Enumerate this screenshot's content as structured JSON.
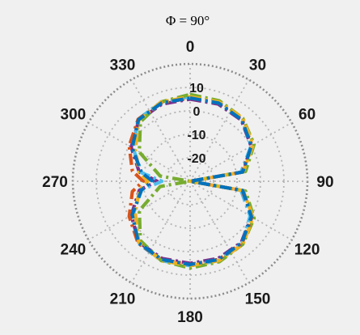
{
  "chart_data": {
    "type": "polar-line",
    "title": "Φ = 90°",
    "angle_zero": "top",
    "angle_direction": "clockwise",
    "angle_ticks": [
      0,
      30,
      60,
      90,
      120,
      150,
      180,
      210,
      240,
      270,
      300,
      330
    ],
    "angle_tick_labels": [
      "0",
      "30",
      "60",
      "90",
      "120",
      "150",
      "180",
      "210",
      "240",
      "270",
      "300",
      "330"
    ],
    "radial_range": [
      -30,
      20
    ],
    "radial_ticks": [
      10,
      0,
      -10,
      -20
    ],
    "radial_tick_labels": [
      "10",
      "0",
      "-10",
      "-20"
    ],
    "grid": true,
    "legend": "none",
    "series": [
      {
        "color": "#7e2f8e",
        "theta": [
          0,
          20,
          40,
          60,
          80,
          90,
          100,
          120,
          140,
          160,
          180,
          200,
          220,
          240,
          260,
          270,
          280,
          300,
          320,
          340,
          360
        ],
        "r": [
          5,
          5,
          4,
          0,
          -7,
          -30,
          -7,
          0,
          4,
          5,
          5,
          5,
          4,
          -1,
          -8,
          -16,
          -8,
          -1,
          4,
          5,
          5
        ]
      },
      {
        "color": "#4dbeee",
        "theta": [
          0,
          20,
          40,
          60,
          80,
          90,
          100,
          120,
          140,
          160,
          180,
          200,
          220,
          240,
          260,
          270,
          280,
          300,
          320,
          340,
          360
        ],
        "r": [
          6,
          6,
          4.5,
          0,
          -8,
          -30,
          -8,
          -0.5,
          4.5,
          6,
          6,
          6,
          4.5,
          -2,
          -9,
          -18,
          -9,
          -2,
          4.5,
          6,
          6
        ]
      },
      {
        "color": "#77ac30",
        "theta": [
          0,
          20,
          40,
          60,
          80,
          90,
          100,
          120,
          140,
          160,
          180,
          200,
          220,
          240,
          260,
          270,
          280,
          300,
          320,
          340,
          360
        ],
        "r": [
          7,
          6.5,
          5,
          1.5,
          -6,
          -30,
          -6,
          1.5,
          5,
          6.5,
          7,
          6,
          3,
          -5,
          -17,
          -30,
          -17,
          -5,
          3,
          6,
          7
        ]
      },
      {
        "color": "#d95319",
        "theta": [
          0,
          20,
          40,
          60,
          80,
          90,
          100,
          120,
          140,
          160,
          180,
          200,
          220,
          240,
          260,
          270,
          280,
          300,
          320,
          340,
          360
        ],
        "r": [
          5.5,
          5.5,
          4.5,
          0.5,
          -7.5,
          -30,
          -7.5,
          0.5,
          4.5,
          5.5,
          5.5,
          5.5,
          4.5,
          0,
          -5,
          -10,
          -5,
          0,
          4.5,
          5.5,
          5.5
        ]
      },
      {
        "color": "#edb120",
        "theta": [
          0,
          20,
          40,
          60,
          80,
          90,
          100,
          120,
          140,
          160,
          180,
          200,
          220,
          240,
          260,
          270,
          280,
          300,
          320,
          340,
          360
        ],
        "r": [
          6,
          6,
          5,
          1,
          -7,
          -30,
          -7,
          1,
          5,
          6,
          6,
          6,
          4,
          -3,
          -8,
          -12,
          -8,
          -3,
          4,
          6,
          6
        ]
      },
      {
        "color": "#0072bd",
        "theta": [
          0,
          20,
          40,
          60,
          80,
          90,
          100,
          120,
          140,
          160,
          180,
          200,
          220,
          240,
          260,
          270,
          280,
          300,
          320,
          340,
          360
        ],
        "r": [
          5.5,
          5.5,
          4.2,
          0.2,
          -7.2,
          -30,
          -7.2,
          0.2,
          4.2,
          5.5,
          5.5,
          5.5,
          4.2,
          -1.5,
          -9,
          -14,
          -9,
          -1.5,
          4.2,
          5.5,
          5.5
        ]
      }
    ]
  }
}
